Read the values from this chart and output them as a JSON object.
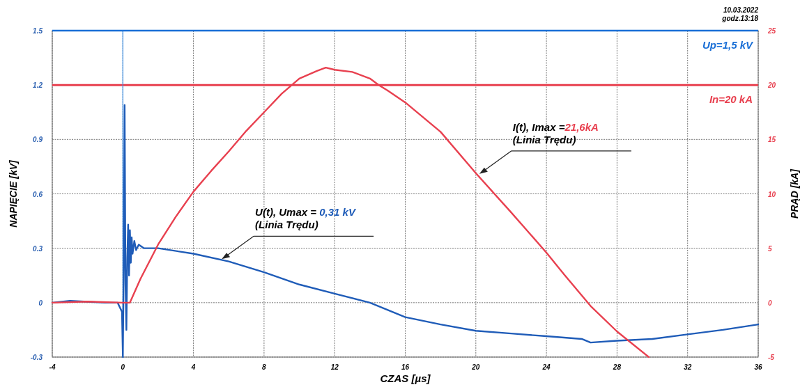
{
  "chart_data": {
    "type": "line",
    "xlabel": "CZAS [µs]",
    "ylabel": "NAPIĘCIE [kV]",
    "y2label": "PRĄD [kA]",
    "xlim": [
      -4,
      36
    ],
    "xticks": [
      -4,
      0,
      4,
      8,
      12,
      16,
      20,
      24,
      28,
      32,
      36
    ],
    "ylim": [
      -0.3,
      1.5
    ],
    "yticks": [
      -0.3,
      0,
      0.3,
      0.6,
      0.9,
      1.2,
      1.5
    ],
    "y2lim": [
      -5,
      25
    ],
    "y2ticks": [
      -5,
      0,
      5,
      10,
      15,
      20,
      25
    ],
    "grid": true,
    "marker": "none",
    "line_style": "solid",
    "series": [
      {
        "color": "#1f5cb8",
        "x": [
          -4,
          -3,
          -2,
          -1,
          -0.3,
          -0.05,
          0,
          0.05,
          0.1,
          0.15,
          0.2,
          0.25,
          0.3,
          0.35,
          0.4,
          0.45,
          0.5,
          0.55,
          0.65,
          0.75,
          0.9,
          1.2,
          2,
          4,
          6,
          8,
          10,
          12,
          14,
          16,
          18,
          20,
          22,
          24,
          26,
          26.5,
          28,
          30,
          32,
          34,
          36
        ],
        "values": [
          0,
          0.01,
          0.005,
          0,
          0,
          -0.05,
          -0.3,
          0.2,
          1.09,
          0.1,
          -0.15,
          0.25,
          0.43,
          0.15,
          0.4,
          0.22,
          0.36,
          0.27,
          0.34,
          0.29,
          0.32,
          0.3,
          0.3,
          0.27,
          0.227,
          0.168,
          0.1,
          0.05,
          0,
          -0.08,
          -0.12,
          -0.155,
          -0.17,
          -0.185,
          -0.2,
          -0.22,
          -0.21,
          -0.2,
          -0.175,
          -0.15,
          -0.12
        ]
      },
      {
        "color": "#e8404f",
        "axis": "y2",
        "x": [
          -4,
          -2,
          0,
          0.4,
          1,
          2,
          3,
          4,
          5,
          6,
          7,
          8,
          9,
          10,
          11,
          11.5,
          12,
          13,
          14,
          14.5,
          15,
          16,
          18,
          20,
          22,
          24,
          25,
          26.5,
          28,
          29.8
        ],
        "values": [
          0,
          0.1,
          0,
          0,
          2.2,
          5.35,
          7.9,
          10.2,
          12.1,
          13.9,
          15.8,
          17.5,
          19.2,
          20.6,
          21.3,
          21.6,
          21.4,
          21.2,
          20.6,
          20,
          19.5,
          18.4,
          15.7,
          11.9,
          8.3,
          4.6,
          2.6,
          -0.3,
          -2.65,
          -5
        ]
      }
    ],
    "ref_lines": [
      {
        "axis": "y",
        "value": 1.5,
        "label": "Up=1,5 kV",
        "color": "#1a6fd6"
      },
      {
        "axis": "y2",
        "value": 20,
        "label": "In=20 kA",
        "color": "#e8404f"
      },
      {
        "axis": "x",
        "value": 0,
        "color": "#3a8ee6"
      }
    ],
    "annotations": [
      {
        "text": "U(t), Umax = 0,31 kV\n(Linia Trędu)",
        "x": 5.6,
        "y": 0.24
      },
      {
        "text": "I(t), Imax =21,6kA\n(Linia Trędu)",
        "x": 20.2,
        "y": 0.71
      },
      "10.03.2022\ngodz.13:18"
    ]
  }
}
